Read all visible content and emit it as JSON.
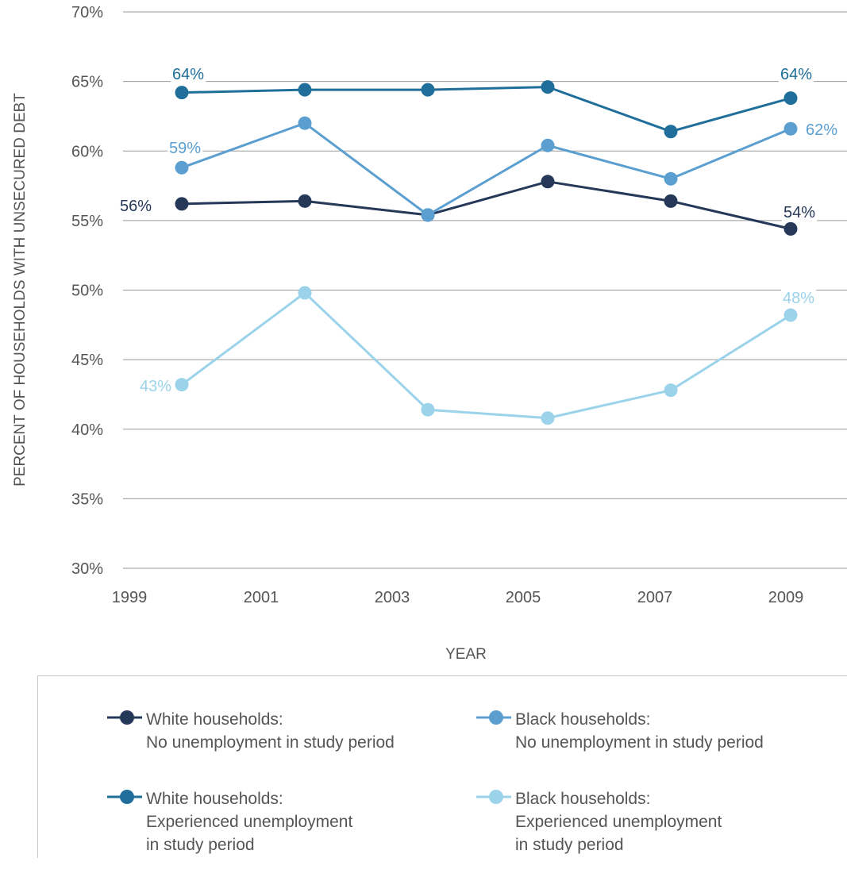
{
  "chart_data": {
    "type": "line",
    "title": "",
    "xlabel": "YEAR",
    "ylabel": "PERCENT OF HOUSEHOLDS WITH UNSECURED DEBT",
    "categories": [
      "1999",
      "2001",
      "2003",
      "2005",
      "2007",
      "2009"
    ],
    "ylim": [
      30,
      70
    ],
    "yticks": [
      "30%",
      "35%",
      "40%",
      "45%",
      "50%",
      "55%",
      "60%",
      "65%",
      "70%"
    ],
    "grid": "horizontal",
    "legend_position": "bottom",
    "series": [
      {
        "name_lines": [
          "White households:",
          "No unemployment in study period"
        ],
        "color": "#253858",
        "values": [
          56.2,
          56.4,
          55.4,
          57.8,
          56.4,
          54.4
        ],
        "labels": {
          "0": "56%",
          "5": "54%"
        }
      },
      {
        "name_lines": [
          "White households:",
          "Experienced unemployment",
          "in study period"
        ],
        "color": "#1f6f9a",
        "values": [
          64.2,
          64.4,
          64.4,
          64.6,
          61.4,
          63.8
        ],
        "labels": {
          "0": "64%",
          "5": "64%"
        }
      },
      {
        "name_lines": [
          "Black households:",
          "No unemployment in study period"
        ],
        "color": "#5a9fd0",
        "values": [
          58.8,
          62.0,
          55.4,
          60.4,
          58.0,
          61.6
        ],
        "labels": {
          "0": "59%",
          "5": "62%"
        }
      },
      {
        "name_lines": [
          "Black households:",
          "Experienced unemployment",
          "in study period"
        ],
        "color": "#9bd3ea",
        "values": [
          43.2,
          49.8,
          41.4,
          40.8,
          42.8,
          48.2
        ],
        "labels": {
          "0": "43%",
          "5": "48%"
        }
      }
    ]
  }
}
